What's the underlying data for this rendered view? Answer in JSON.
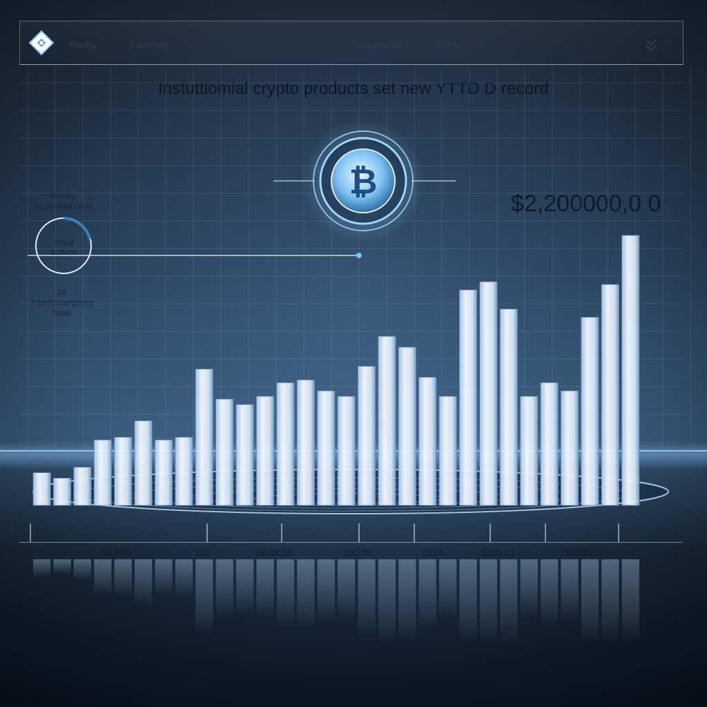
{
  "nav": {
    "items": [
      "Weekly",
      "Comming",
      "Emppiorcke",
      "Evon"
    ],
    "logo_icon": "diamond-logo-icon",
    "dropdown_icon": "double-chevron-down-icon"
  },
  "side_panel": {
    "top_label": "Weeky",
    "top_value": "$2,800000,000",
    "ring_label_1": "Vfeed",
    "ring_label_2": "dollfeco",
    "bottom_label_1": "bll",
    "bottom_label_2": "Interndoumphing",
    "bottom_label_3": "fopio"
  },
  "coin_icon": "bitcoin-coin-icon",
  "colors": {
    "bar_light": "#f2f8ff",
    "bar_mid": "#bcd6f0",
    "bar_edge": "#5f88b4",
    "accent": "#6fc3ff"
  },
  "chart_data": {
    "type": "bar",
    "title": "Instuttiomial crypto products set new YTTD D record",
    "annotation": "$2,200000,0 0",
    "x_tick_labels": [
      "08,806",
      "200",
      "00 38,06",
      "200,06",
      "0010",
      "$200,00",
      "280001"
    ],
    "values": [
      12,
      10,
      14,
      24,
      25,
      31,
      24,
      25,
      50,
      39,
      37,
      40,
      45,
      46,
      42,
      40,
      51,
      62,
      58,
      47,
      40,
      79,
      82,
      72,
      40,
      45,
      42,
      69,
      81,
      99
    ],
    "grid": true,
    "legend": "none"
  }
}
